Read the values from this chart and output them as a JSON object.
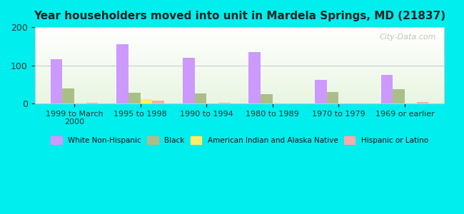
{
  "title": "Year householders moved into unit in Mardela Springs, MD (21837)",
  "categories": [
    "1999 to March\n2000",
    "1995 to 1998",
    "1990 to 1994",
    "1980 to 1989",
    "1970 to 1979",
    "1969 or earlier"
  ],
  "series": {
    "White Non-Hispanic": [
      117,
      155,
      120,
      135,
      62,
      75
    ],
    "Black": [
      40,
      28,
      26,
      24,
      30,
      38
    ],
    "American Indian and Alaska Native": [
      0,
      12,
      0,
      0,
      0,
      0
    ],
    "Hispanic or Latino": [
      3,
      8,
      3,
      0,
      0,
      4
    ]
  },
  "colors": {
    "White Non-Hispanic": "#cc99ff",
    "Black": "#aabf88",
    "American Indian and Alaska Native": "#ffee66",
    "Hispanic or Latino": "#ffaaaa"
  },
  "ylim": [
    0,
    200
  ],
  "yticks": [
    0,
    100,
    200
  ],
  "background_color": "#00eeee",
  "plot_bg_start": "#e8f5e0",
  "plot_bg_end": "#ffffff",
  "bar_width": 0.18,
  "watermark": "City-Data.com"
}
